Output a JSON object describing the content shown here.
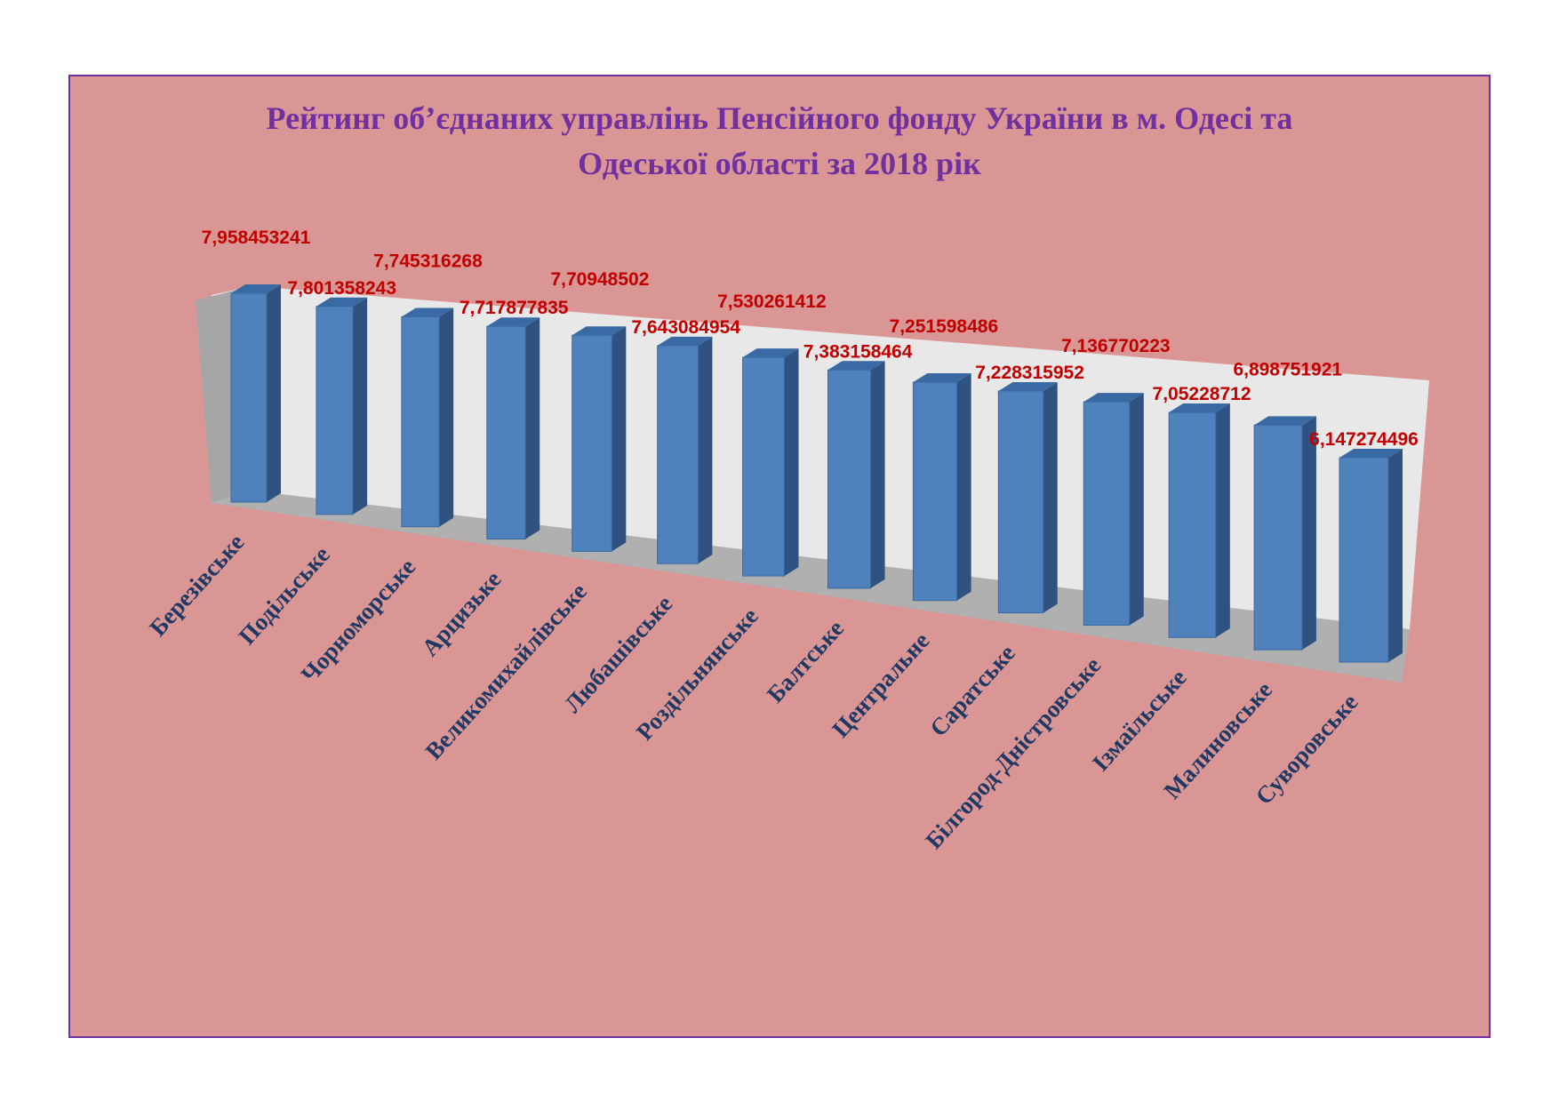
{
  "chart_data": {
    "type": "bar",
    "title_lines": [
      "Рейтинг об’єднаних управлінь Пенсійного фонду України в м. Одесі та",
      "Одеської області за  2018 рік"
    ],
    "categories": [
      "Березівське",
      "Подільське",
      "Чорноморське",
      "Арцизьке",
      "Великомихайлівське",
      "Любашівське",
      "Роздільнянське",
      "Балтське",
      "Центральне",
      "Саратське",
      "Білгород-Дністровське",
      "Ізмаїльське",
      "Малиновське",
      "Суворовське"
    ],
    "values": [
      7.958453241,
      7.801358243,
      7.745316268,
      7.717877835,
      7.70948502,
      7.643084954,
      7.530261412,
      7.383158464,
      7.251598486,
      7.228315952,
      7.136770223,
      7.05228712,
      6.898751921,
      6.147274496
    ],
    "labels": [
      "7,958453241",
      "7,801358243",
      "7,745316268",
      "7,717877835",
      "7,70948502",
      "7,643084954",
      "7,530261412",
      "7,383158464",
      "7,251598486",
      "7,228315952",
      "7,136770223",
      "7,05228712",
      "6,898751921",
      "6,147274496"
    ],
    "style": "3d-perspective",
    "gridlines": false,
    "legend": "none"
  },
  "colors": {
    "plot_background": "#da9694",
    "frame_border": "#7030a0",
    "title": "#7030a0",
    "bar_front": "#4f81bd",
    "bar_side": "#2f5280",
    "bar_top": "#3a6aa3",
    "data_label": "#c00000",
    "category_label": "#1f3864",
    "back_wall": "#e8e8e8",
    "side_wall": "#a6a6a6",
    "floor": "#b0b0b0"
  }
}
